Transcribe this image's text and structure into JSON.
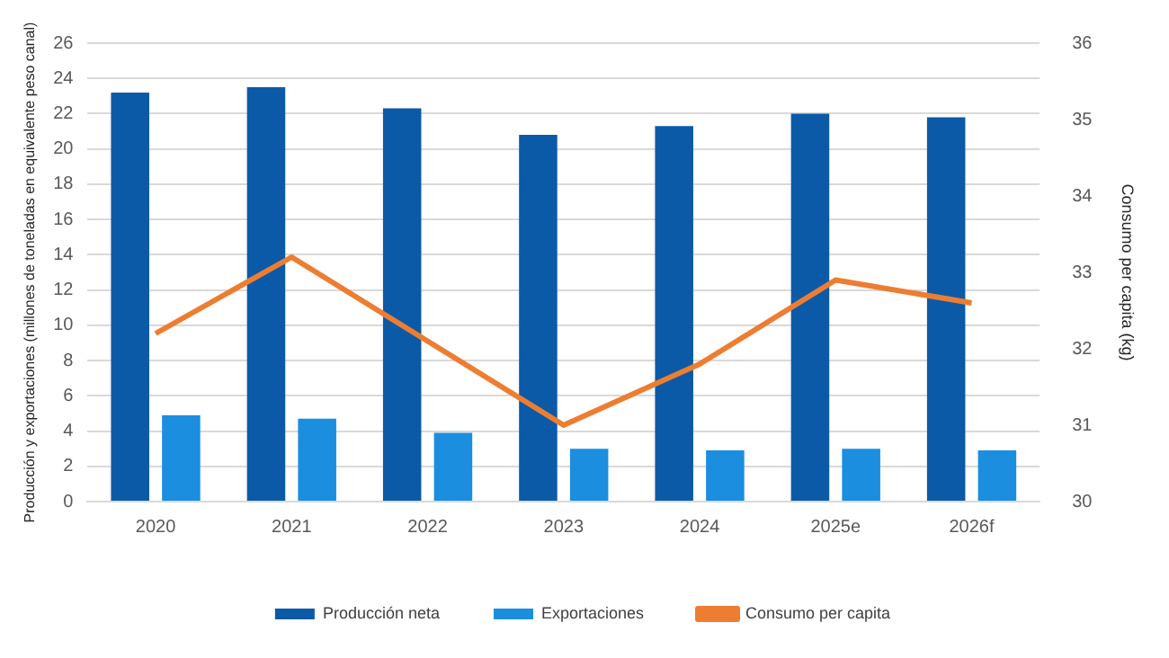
{
  "chart_data": {
    "type": "bar",
    "categories": [
      "2020",
      "2021",
      "2022",
      "2023",
      "2024",
      "2025e",
      "2026f"
    ],
    "series": [
      {
        "name": "Producción neta",
        "color": "#0b5aa8",
        "values": [
          23.2,
          23.5,
          22.3,
          20.8,
          21.3,
          22.0,
          21.8
        ]
      },
      {
        "name": "Exportaciones",
        "color": "#1b8ee0",
        "values": [
          4.9,
          4.7,
          3.9,
          3.0,
          2.9,
          3.0,
          2.9
        ]
      },
      {
        "name": "Consumo per capita",
        "color": "#ed7d31",
        "type": "line",
        "axis": "y2",
        "values": [
          32.2,
          33.2,
          32.1,
          31.0,
          31.8,
          32.9,
          32.6
        ]
      }
    ],
    "ylabel": "Producción y exportaciones (millones de toneladas en equivalente peso canal)",
    "y2label": "Consumo per capita (kg)",
    "ylim": [
      0,
      26
    ],
    "yticks": [
      0,
      2,
      4,
      6,
      8,
      10,
      12,
      14,
      16,
      18,
      20,
      22,
      24,
      26
    ],
    "y2lim": [
      30,
      36
    ],
    "y2ticks": [
      30,
      31,
      32,
      33,
      34,
      35,
      36
    ],
    "grid": "y",
    "legend": "bottom",
    "marker": "none"
  }
}
